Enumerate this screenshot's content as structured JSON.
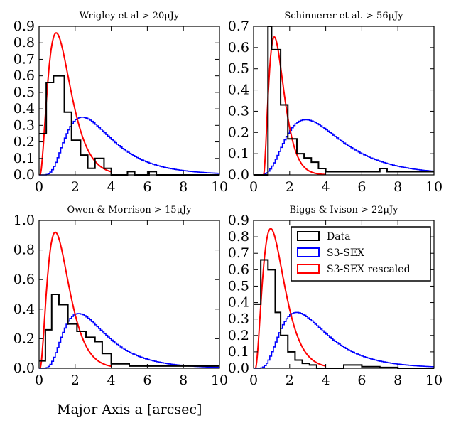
{
  "figure": {
    "xlabel": "Major Axis a [arcsec]"
  },
  "colors": {
    "data": "#000000",
    "model": "#0000ff",
    "rescaled": "#ff0000"
  },
  "legend": {
    "placement": "top-right of bottom-right panel",
    "entries": [
      {
        "label": "Data",
        "color": "#000000"
      },
      {
        "label": "S3-SEX",
        "color": "#0000ff"
      },
      {
        "label": "S3-SEX rescaled",
        "color": "#ff0000"
      }
    ]
  },
  "chart_data": [
    {
      "type": "line",
      "title": "Wrigley et al > 20μJy",
      "xlabel": "",
      "ylabel": "",
      "xlim": [
        0,
        10
      ],
      "ylim": [
        0,
        0.9
      ],
      "xticks": [
        0,
        2,
        4,
        6,
        8,
        10
      ],
      "yticks": [
        0.0,
        0.1,
        0.2,
        0.3,
        0.4,
        0.5,
        0.6,
        0.7,
        0.8,
        0.9
      ],
      "ytick_labels": [
        "0.0",
        "0.1",
        "0.2",
        "0.3",
        "0.4",
        "0.5",
        "0.6",
        "0.7",
        "0.8",
        "0.9"
      ],
      "data_hist": {
        "edges": [
          0,
          0.4,
          0.8,
          1.4,
          1.8,
          2.3,
          2.7,
          3.1,
          3.6,
          4.0,
          4.9,
          5.3,
          6.1,
          6.5,
          10
        ],
        "values": [
          0.25,
          0.56,
          0.6,
          0.38,
          0.21,
          0.12,
          0.04,
          0.1,
          0.04,
          0.0,
          0.02,
          0.0,
          0.02,
          0.0
        ]
      },
      "model": {
        "peak_x": 2.4,
        "peak_y": 0.35,
        "start_x": 0.4
      },
      "rescaled": {
        "peak_x": 0.95,
        "peak_y": 0.86,
        "start_x": 0.05,
        "end_x": 4.0
      }
    },
    {
      "type": "line",
      "title": "Schinnerer et al. > 56μJy",
      "xlabel": "",
      "ylabel": "",
      "xlim": [
        0,
        10
      ],
      "ylim": [
        0,
        0.7
      ],
      "xticks": [
        0,
        2,
        4,
        6,
        8,
        10
      ],
      "yticks": [
        0.0,
        0.1,
        0.2,
        0.3,
        0.4,
        0.5,
        0.6,
        0.7
      ],
      "ytick_labels": [
        "0.0",
        "0.1",
        "0.2",
        "0.3",
        "0.4",
        "0.5",
        "0.6",
        "0.7"
      ],
      "data_hist": {
        "edges": [
          0,
          0.8,
          1.0,
          1.5,
          1.9,
          2.4,
          2.8,
          3.2,
          3.6,
          4.0,
          7.0,
          7.4,
          10
        ],
        "values": [
          0.0,
          0.7,
          0.59,
          0.33,
          0.17,
          0.1,
          0.08,
          0.06,
          0.03,
          0.015,
          0.03,
          0.015
        ]
      },
      "model": {
        "peak_x": 2.9,
        "peak_y": 0.26,
        "start_x": 0.6
      },
      "rescaled": {
        "peak_x": 1.15,
        "peak_y": 0.65,
        "start_x": 0.55,
        "end_x": 4.0
      }
    },
    {
      "type": "line",
      "title": "Owen & Morrison > 15μJy",
      "xlabel": "",
      "ylabel": "",
      "xlim": [
        0,
        10
      ],
      "ylim": [
        0,
        1.0
      ],
      "xticks": [
        0,
        2,
        4,
        6,
        8,
        10
      ],
      "yticks": [
        0.0,
        0.2,
        0.4,
        0.6,
        0.8,
        1.0
      ],
      "ytick_labels": [
        "0.0",
        "0.2",
        "0.4",
        "0.6",
        "0.8",
        "1.0"
      ],
      "data_hist": {
        "edges": [
          0,
          0.35,
          0.7,
          1.1,
          1.6,
          2.1,
          2.6,
          3.1,
          3.5,
          4.0,
          5.0,
          10
        ],
        "values": [
          0.05,
          0.26,
          0.5,
          0.43,
          0.3,
          0.25,
          0.21,
          0.18,
          0.1,
          0.03,
          0.015
        ]
      },
      "model": {
        "peak_x": 2.2,
        "peak_y": 0.37,
        "start_x": 0.4
      },
      "rescaled": {
        "peak_x": 0.9,
        "peak_y": 0.92,
        "start_x": 0.05,
        "end_x": 4.0
      }
    },
    {
      "type": "line",
      "title": "Biggs & Ivison > 22μJy",
      "xlabel": "",
      "ylabel": "",
      "xlim": [
        0,
        10
      ],
      "ylim": [
        0,
        0.9
      ],
      "xticks": [
        0,
        2,
        4,
        6,
        8,
        10
      ],
      "yticks": [
        0.0,
        0.1,
        0.2,
        0.3,
        0.4,
        0.5,
        0.6,
        0.7,
        0.8,
        0.9
      ],
      "ytick_labels": [
        "0.0",
        "0.1",
        "0.2",
        "0.3",
        "0.4",
        "0.5",
        "0.6",
        "0.7",
        "0.8",
        "0.9"
      ],
      "data_hist": {
        "edges": [
          0,
          0.4,
          0.8,
          1.2,
          1.5,
          1.9,
          2.3,
          2.7,
          3.1,
          3.5,
          4.0,
          5.0,
          6.0,
          7.0,
          8.0,
          10
        ],
        "values": [
          0.39,
          0.66,
          0.6,
          0.34,
          0.2,
          0.1,
          0.05,
          0.03,
          0.02,
          0.0,
          0.0,
          0.02,
          0.01,
          0.005,
          0.0
        ]
      },
      "model": {
        "peak_x": 2.4,
        "peak_y": 0.34,
        "start_x": 0.4
      },
      "rescaled": {
        "peak_x": 0.95,
        "peak_y": 0.85,
        "start_x": 0.1,
        "end_x": 4.0
      }
    }
  ]
}
